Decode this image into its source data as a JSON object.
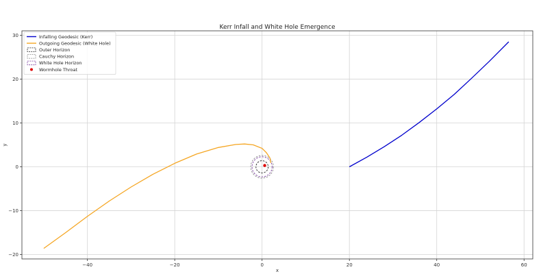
{
  "chart_data": {
    "type": "line",
    "title": "Kerr Infall and White Hole Emergence",
    "xlabel": "x",
    "ylabel": "y",
    "xlim": [
      -55,
      62
    ],
    "ylim": [
      -21,
      31
    ],
    "xticks": [
      -40,
      -20,
      0,
      20,
      40,
      60
    ],
    "yticks": [
      -20,
      -10,
      0,
      10,
      20,
      30
    ],
    "grid": true,
    "legend_position": "top-left",
    "series": [
      {
        "name": "Infalling Geodesic (Kerr)",
        "color": "#0000cc",
        "x": [
          20,
          24,
          28,
          32,
          36,
          40,
          44,
          48,
          52,
          56.5
        ],
        "y": [
          0,
          2.2,
          4.6,
          7.2,
          10.1,
          13.2,
          16.5,
          20.2,
          24.0,
          28.5
        ]
      },
      {
        "name": "Outgoing Geodesic (White Hole)",
        "color": "#f5a623",
        "x": [
          -50,
          -45,
          -40,
          -35,
          -30,
          -25,
          -20,
          -15,
          -10,
          -6,
          -4,
          -2,
          0,
          1,
          1.8,
          2
        ],
        "y": [
          -18.6,
          -15.0,
          -11.3,
          -7.8,
          -4.6,
          -1.7,
          0.8,
          2.9,
          4.4,
          5.1,
          5.2,
          5.0,
          4.2,
          3.2,
          2.0,
          0.9
        ]
      }
    ],
    "horizons": [
      {
        "name": "Outer Horizon",
        "color": "#222222",
        "radius": 1.4
      },
      {
        "name": "Cauchy Horizon",
        "color": "#8a8a8a",
        "radius": 2.6
      },
      {
        "name": "White Hole Horizon",
        "color": "#7b3fa0",
        "radius": 2.3
      }
    ],
    "throat": {
      "name": "Wormhole Throat",
      "color": "#dd0000",
      "x": 0.6,
      "y": 0.3
    }
  }
}
